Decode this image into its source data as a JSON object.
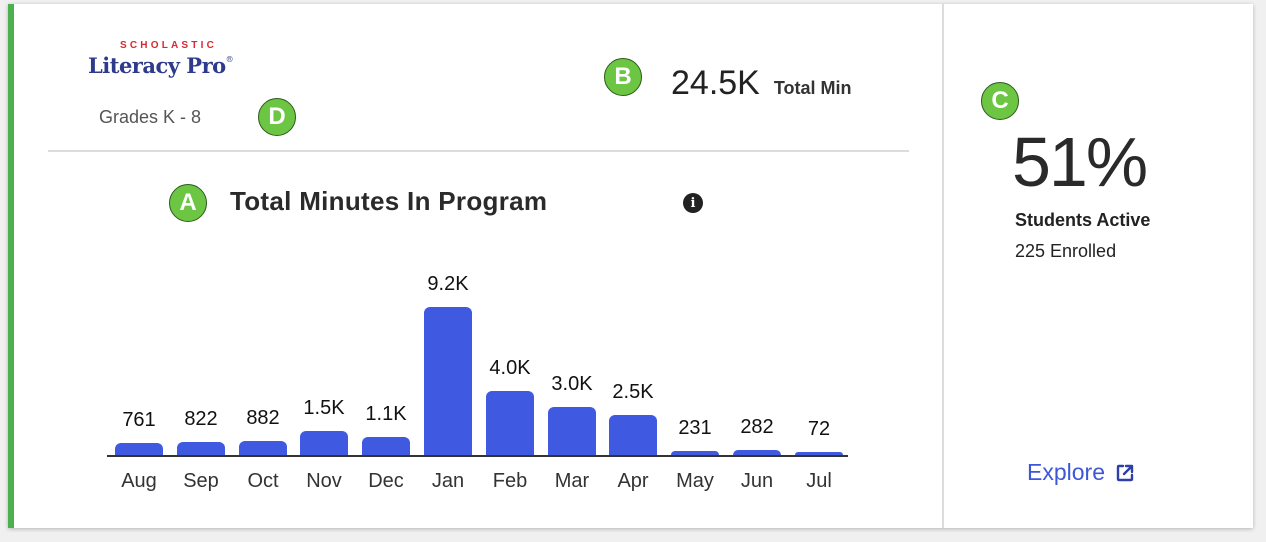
{
  "header": {
    "brand": "SCHOLASTIC",
    "product": "Literacy Pro",
    "product_mark": "®",
    "grades": "Grades K - 8"
  },
  "total_minutes": {
    "value": "24.5K",
    "label": "Total Min"
  },
  "chart_section": {
    "title": "Total Minutes In Program",
    "info_icon": "info-icon"
  },
  "stats": {
    "percent_active": "51%",
    "active_label": "Students Active",
    "enrolled_label": "225 Enrolled"
  },
  "explore": {
    "label": "Explore",
    "icon": "external-link-icon"
  },
  "markers": {
    "a": "A",
    "b": "B",
    "c": "C",
    "d": "D"
  },
  "colors": {
    "bar": "#3f5ae0",
    "accent_border": "#4caf50",
    "brand_red": "#d42a33",
    "brand_navy": "#2e3a8c",
    "link": "#3c57d8",
    "marker": "#6cc644"
  },
  "chart_data": {
    "type": "bar",
    "title": "Total Minutes In Program",
    "xlabel": "",
    "ylabel": "",
    "categories": [
      "Aug",
      "Sep",
      "Oct",
      "Nov",
      "Dec",
      "Jan",
      "Feb",
      "Mar",
      "Apr",
      "May",
      "Jun",
      "Jul"
    ],
    "values": [
      761,
      822,
      882,
      1500,
      1100,
      9200,
      4000,
      3000,
      2500,
      231,
      282,
      72
    ],
    "labels": [
      "761",
      "822",
      "882",
      "1.5K",
      "1.1K",
      "9.2K",
      "4.0K",
      "3.0K",
      "2.5K",
      "231",
      "282",
      "72"
    ],
    "ylim": [
      0,
      9200
    ],
    "grid": false,
    "legend": null
  }
}
